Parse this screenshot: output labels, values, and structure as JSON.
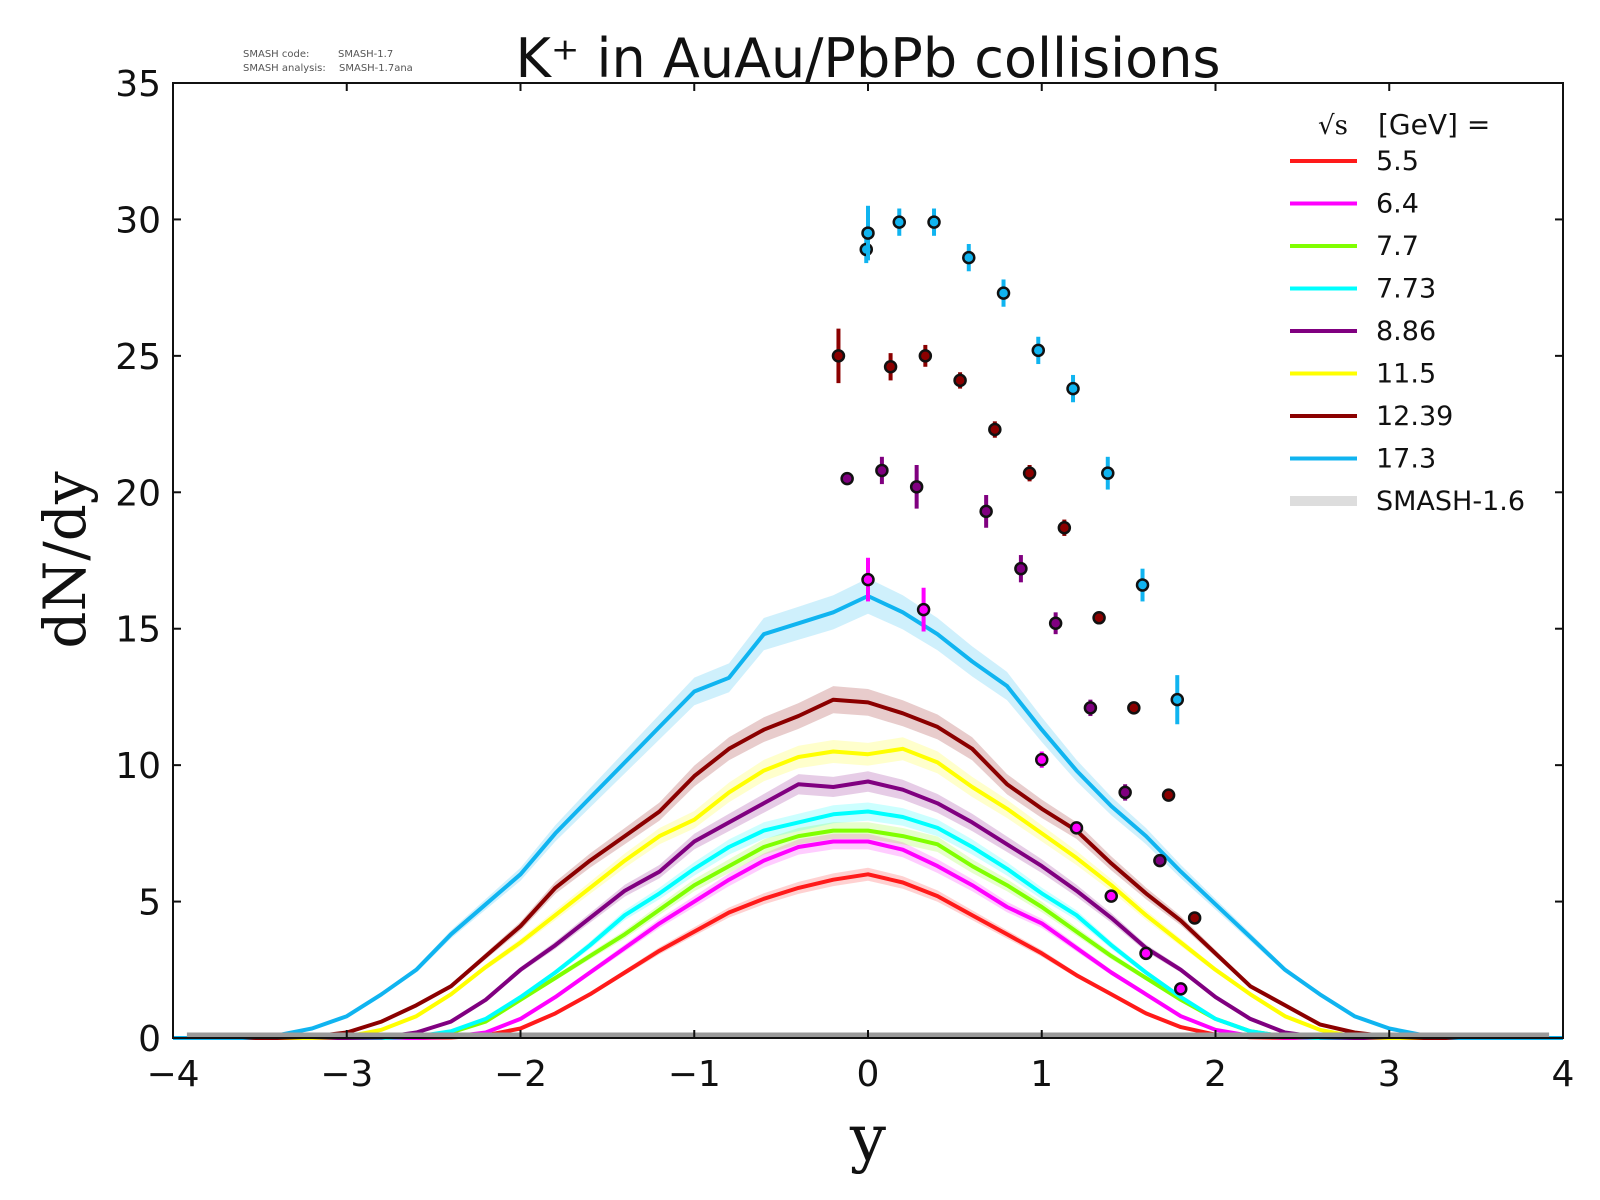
{
  "stamp": {
    "code_label": "SMASH code:",
    "code_value": "SMASH-1.7",
    "analysis_label": "SMASH analysis:",
    "analysis_value": "SMASH-1.7ana"
  },
  "chart_data": {
    "type": "line",
    "title": "K⁺ in AuAu/PbPb collisions",
    "xlabel": "y",
    "ylabel": "dN/dy",
    "xlim": [
      -4,
      4
    ],
    "ylim": [
      0,
      35
    ],
    "xticks": [
      -4,
      -3,
      -2,
      -1,
      0,
      1,
      2,
      3,
      4
    ],
    "xtick_labels": [
      "−4",
      "−3",
      "−2",
      "−1",
      "0",
      "1",
      "2",
      "3",
      "4"
    ],
    "yticks": [
      0,
      5,
      10,
      15,
      20,
      25,
      30,
      35
    ],
    "ytick_labels": [
      "0",
      "5",
      "10",
      "15",
      "20",
      "25",
      "30",
      "35"
    ],
    "legend": {
      "position": "top-right",
      "title_sqrt": "√s",
      "title_rest": "[GeV] =",
      "model_label": "SMASH-1.6",
      "model_color": "#dddddd"
    },
    "x": [
      -4.0,
      -3.8,
      -3.6,
      -3.4,
      -3.2,
      -3.0,
      -2.8,
      -2.6,
      -2.4,
      -2.2,
      -2.0,
      -1.8,
      -1.6,
      -1.4,
      -1.2,
      -1.0,
      -0.8,
      -0.6,
      -0.4,
      -0.2,
      0.0,
      0.2,
      0.4,
      0.6,
      0.8,
      1.0,
      1.2,
      1.4,
      1.6,
      1.8,
      2.0,
      2.2,
      2.4,
      2.6,
      2.8,
      3.0,
      3.2,
      3.4,
      3.6,
      3.8,
      4.0
    ],
    "series": [
      {
        "name": "5.5",
        "color": "#ff1a1a",
        "y": [
          0,
          0,
          0,
          0,
          0,
          0,
          0,
          0,
          0.02,
          0.1,
          0.35,
          0.9,
          1.6,
          2.4,
          3.2,
          3.9,
          4.6,
          5.1,
          5.5,
          5.8,
          6.0,
          5.7,
          5.2,
          4.5,
          3.8,
          3.1,
          2.3,
          1.6,
          0.9,
          0.4,
          0.12,
          0.03,
          0,
          0,
          0,
          0,
          0,
          0,
          0,
          0,
          0
        ],
        "points": []
      },
      {
        "name": "6.4",
        "color": "#ff00ff",
        "y": [
          0,
          0,
          0,
          0,
          0,
          0,
          0,
          0,
          0.04,
          0.2,
          0.7,
          1.5,
          2.4,
          3.3,
          4.2,
          5.0,
          5.8,
          6.5,
          7.0,
          7.2,
          7.2,
          6.9,
          6.3,
          5.6,
          4.8,
          4.2,
          3.3,
          2.4,
          1.6,
          0.8,
          0.3,
          0.08,
          0.01,
          0,
          0,
          0,
          0,
          0,
          0,
          0,
          0
        ],
        "points": [
          {
            "x": 0.0,
            "y": 16.8,
            "err": 0.8
          },
          {
            "x": 0.32,
            "y": 15.7,
            "err": 0.8
          },
          {
            "x": 1.0,
            "y": 10.2,
            "err": 0.3
          },
          {
            "x": 1.2,
            "y": 7.7,
            "err": 0.2
          },
          {
            "x": 1.4,
            "y": 5.2,
            "err": 0.2
          },
          {
            "x": 1.6,
            "y": 3.1,
            "err": 0.1
          },
          {
            "x": 1.8,
            "y": 1.8,
            "err": 0.1
          }
        ]
      },
      {
        "name": "7.7",
        "color": "#80ff00",
        "y": [
          0,
          0,
          0,
          0,
          0,
          0,
          0,
          0.05,
          0.2,
          0.6,
          1.4,
          2.2,
          3.0,
          3.8,
          4.7,
          5.6,
          6.3,
          7.0,
          7.4,
          7.6,
          7.6,
          7.4,
          7.1,
          6.3,
          5.6,
          4.8,
          3.9,
          3.0,
          2.2,
          1.4,
          0.7,
          0.25,
          0.05,
          0,
          0,
          0,
          0,
          0,
          0,
          0,
          0
        ],
        "points": []
      },
      {
        "name": "7.73",
        "color": "#00ffff",
        "y": [
          0,
          0,
          0,
          0,
          0,
          0,
          0,
          0.05,
          0.25,
          0.7,
          1.5,
          2.4,
          3.4,
          4.5,
          5.3,
          6.2,
          7.0,
          7.6,
          7.9,
          8.2,
          8.3,
          8.1,
          7.7,
          7.0,
          6.2,
          5.3,
          4.5,
          3.4,
          2.4,
          1.5,
          0.7,
          0.25,
          0.05,
          0,
          0,
          0,
          0,
          0,
          0,
          0,
          0
        ],
        "points": []
      },
      {
        "name": "8.86",
        "color": "#800080",
        "y": [
          0,
          0,
          0,
          0,
          0,
          0,
          0.02,
          0.2,
          0.6,
          1.4,
          2.5,
          3.4,
          4.4,
          5.4,
          6.1,
          7.2,
          7.9,
          8.6,
          9.3,
          9.2,
          9.4,
          9.1,
          8.6,
          7.9,
          7.1,
          6.3,
          5.4,
          4.4,
          3.3,
          2.5,
          1.5,
          0.7,
          0.2,
          0.03,
          0,
          0,
          0,
          0,
          0,
          0,
          0
        ],
        "points": [
          {
            "x": -0.12,
            "y": 20.5,
            "err": 0.1
          },
          {
            "x": 0.08,
            "y": 20.8,
            "err": 0.5
          },
          {
            "x": 0.28,
            "y": 20.2,
            "err": 0.8
          },
          {
            "x": 0.68,
            "y": 19.3,
            "err": 0.6
          },
          {
            "x": 0.88,
            "y": 17.2,
            "err": 0.5
          },
          {
            "x": 1.08,
            "y": 15.2,
            "err": 0.4
          },
          {
            "x": 1.28,
            "y": 12.1,
            "err": 0.3
          },
          {
            "x": 1.48,
            "y": 9.0,
            "err": 0.3
          },
          {
            "x": 1.68,
            "y": 6.5,
            "err": 0.2
          }
        ]
      },
      {
        "name": "11.5",
        "color": "#ffff00",
        "y": [
          0,
          0,
          0,
          0,
          0,
          0.05,
          0.3,
          0.8,
          1.6,
          2.6,
          3.5,
          4.5,
          5.5,
          6.5,
          7.4,
          8.0,
          9.0,
          9.8,
          10.3,
          10.5,
          10.4,
          10.6,
          10.1,
          9.2,
          8.4,
          7.5,
          6.6,
          5.6,
          4.5,
          3.5,
          2.5,
          1.6,
          0.8,
          0.3,
          0.05,
          0,
          0,
          0,
          0,
          0,
          0
        ],
        "points": []
      },
      {
        "name": "12.39",
        "color": "#8b0000",
        "y": [
          0,
          0,
          0,
          0,
          0.05,
          0.2,
          0.6,
          1.2,
          1.9,
          3.0,
          4.1,
          5.5,
          6.5,
          7.4,
          8.3,
          9.6,
          10.6,
          11.3,
          11.8,
          12.4,
          12.3,
          11.9,
          11.4,
          10.6,
          9.3,
          8.4,
          7.6,
          6.4,
          5.3,
          4.3,
          3.1,
          1.9,
          1.2,
          0.5,
          0.2,
          0.05,
          0,
          0,
          0,
          0,
          0
        ],
        "points": [
          {
            "x": -0.17,
            "y": 25.0,
            "err": 1.0
          },
          {
            "x": 0.13,
            "y": 24.6,
            "err": 0.5
          },
          {
            "x": 0.33,
            "y": 25.0,
            "err": 0.4
          },
          {
            "x": 0.53,
            "y": 24.1,
            "err": 0.3
          },
          {
            "x": 0.73,
            "y": 22.3,
            "err": 0.3
          },
          {
            "x": 0.93,
            "y": 20.7,
            "err": 0.3
          },
          {
            "x": 1.13,
            "y": 18.7,
            "err": 0.3
          },
          {
            "x": 1.33,
            "y": 15.4,
            "err": 0.2
          },
          {
            "x": 1.53,
            "y": 12.1,
            "err": 0.2
          },
          {
            "x": 1.73,
            "y": 8.9,
            "err": 0.2
          },
          {
            "x": 1.88,
            "y": 4.4,
            "err": 0.2
          }
        ]
      },
      {
        "name": "17.3",
        "color": "#10b4f0",
        "y": [
          0,
          0,
          0,
          0.1,
          0.35,
          0.8,
          1.6,
          2.5,
          3.8,
          4.9,
          6.0,
          7.5,
          8.8,
          10.1,
          11.4,
          12.7,
          13.2,
          14.8,
          15.2,
          15.6,
          16.2,
          15.6,
          14.8,
          13.8,
          12.9,
          11.3,
          9.8,
          8.5,
          7.4,
          6.1,
          4.9,
          3.7,
          2.5,
          1.6,
          0.8,
          0.35,
          0.1,
          0,
          0,
          0,
          0
        ],
        "points": [
          {
            "x": -0.01,
            "y": 28.9,
            "err": 0.5
          },
          {
            "x": 0.0,
            "y": 29.5,
            "err": 1.0
          },
          {
            "x": 0.18,
            "y": 29.9,
            "err": 0.5
          },
          {
            "x": 0.38,
            "y": 29.9,
            "err": 0.5
          },
          {
            "x": 0.58,
            "y": 28.6,
            "err": 0.5
          },
          {
            "x": 0.78,
            "y": 27.3,
            "err": 0.5
          },
          {
            "x": 0.98,
            "y": 25.2,
            "err": 0.5
          },
          {
            "x": 1.18,
            "y": 23.8,
            "err": 0.5
          },
          {
            "x": 1.38,
            "y": 20.7,
            "err": 0.6
          },
          {
            "x": 1.58,
            "y": 16.6,
            "err": 0.6
          },
          {
            "x": 1.78,
            "y": 12.4,
            "err": 0.9
          }
        ]
      }
    ]
  }
}
